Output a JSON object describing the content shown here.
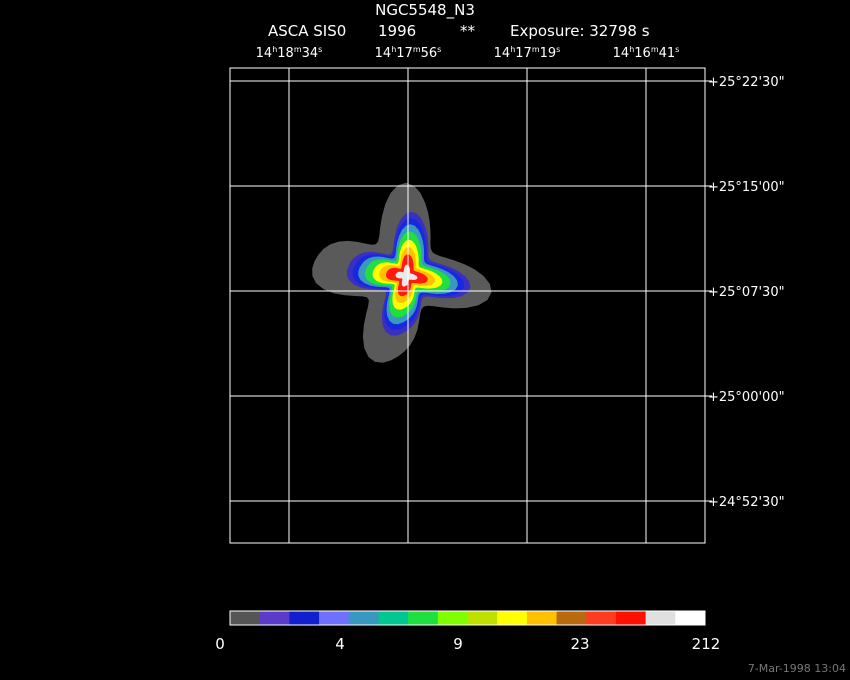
{
  "header": {
    "title": "NGC5548_N3",
    "instrument": "ASCA SIS0",
    "year": "1996",
    "flag": "**",
    "exposure": "Exposure: 32798 s"
  },
  "ra_labels": [
    [
      "14",
      "h",
      "18",
      "m",
      "34",
      "s"
    ],
    [
      "14",
      "h",
      "17",
      "m",
      "56",
      "s"
    ],
    [
      "14",
      "h",
      "17",
      "m",
      "19",
      "s"
    ],
    [
      "14",
      "h",
      "16",
      "m",
      "41",
      "s"
    ]
  ],
  "dec_labels": [
    "+25°22'30\"",
    "+25°15'00\"",
    "+25°07'30\"",
    "+25°00'00\"",
    "+24°52'30\""
  ],
  "colorbar": {
    "colors": [
      "#555555",
      "#5a3cc8",
      "#1020d0",
      "#7070ff",
      "#3898c0",
      "#00c890",
      "#20e040",
      "#80ff00",
      "#c0e000",
      "#ffff00",
      "#ffc000",
      "#b86a10",
      "#ff3c20",
      "#ff1000",
      "#e0e0e0",
      "#ffffff"
    ],
    "labels": [
      0,
      4,
      9,
      23,
      212
    ]
  },
  "footer": "7-Mar-1998 13:04"
}
